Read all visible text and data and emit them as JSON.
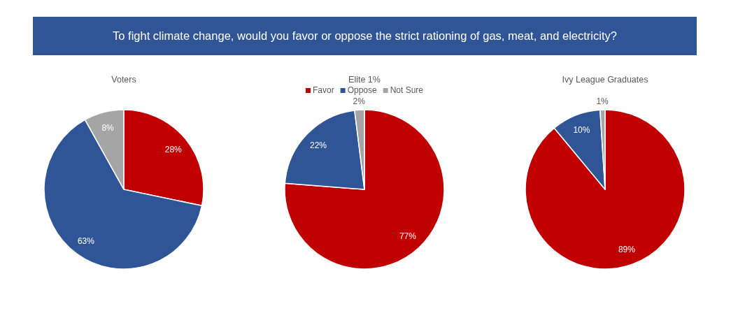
{
  "chart_data": [
    {
      "type": "other",
      "title": "To fight climate change, would you favor or oppose the strict rationing of gas, meat, and electricity?"
    },
    {
      "type": "pie",
      "title": "Voters",
      "categories": [
        null,
        null,
        null
      ],
      "values": [
        28,
        63,
        8
      ],
      "colors": [
        "#c00000",
        "#2f5597",
        "#a5a5a5"
      ],
      "value_labels": [
        "28%",
        "63%",
        "8%"
      ]
    },
    {
      "type": "pie",
      "title": "Elite 1%",
      "categories": [
        "Favor",
        "Oppose",
        "Not Sure"
      ],
      "values": [
        77,
        22,
        2
      ],
      "colors": [
        "#c00000",
        "#2f5597",
        "#a5a5a5"
      ],
      "value_labels": [
        "77%",
        "22%",
        "2%"
      ],
      "legend": "top"
    },
    {
      "type": "pie",
      "title": "Ivy League Graduates",
      "categories": [
        null,
        null,
        null
      ],
      "values": [
        89,
        10,
        1
      ],
      "colors": [
        "#c00000",
        "#2f5597",
        "#a5a5a5"
      ],
      "value_labels": [
        "89%",
        "10%",
        "1%"
      ]
    }
  ]
}
